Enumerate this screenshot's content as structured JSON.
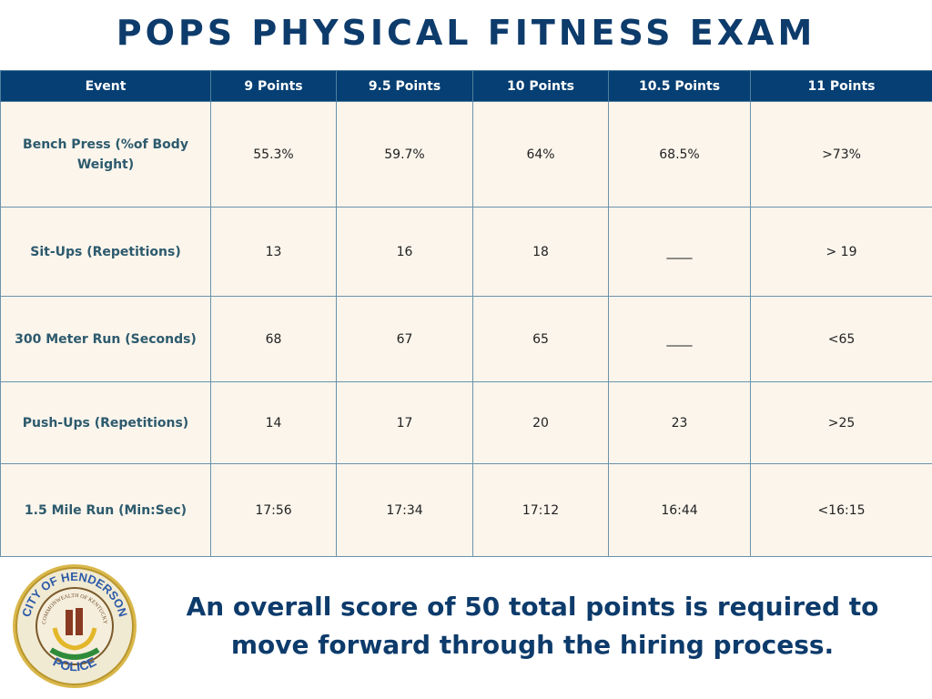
{
  "title": "POPS PHYSICAL FITNESS EXAM",
  "table": {
    "headers": [
      "Event",
      "9 Points",
      "9.5 Points",
      "10 Points",
      "10.5 Points",
      "11 Points"
    ],
    "rows": [
      [
        "Bench Press (%of Body Weight)",
        "55.3%",
        "59.7%",
        "64%",
        "68.5%",
        ">73%"
      ],
      [
        "Sit-Ups (Repetitions)",
        "13",
        "16",
        "18",
        "____",
        "> 19"
      ],
      [
        "300 Meter Run (Seconds)",
        "68",
        "67",
        "65",
        "____",
        "<65"
      ],
      [
        "Push-Ups (Repetitions)",
        "14",
        "17",
        "20",
        "23",
        ">25"
      ],
      [
        "1.5 Mile Run (Min:Sec)",
        "17:56",
        "17:34",
        "17:12",
        "16:44",
        "<16:15"
      ]
    ]
  },
  "logo": {
    "top_text": "CITY OF HENDERSON",
    "bottom_text": "POLICE",
    "inner_text": "COMMONWEALTH OF KENTUCKY"
  },
  "footer": "An overall score of 50 total points is required to move forward through the hiring process.",
  "colors": {
    "header": "#053f73",
    "cell": "#fbf5ec",
    "title": "#0d3b6b"
  }
}
